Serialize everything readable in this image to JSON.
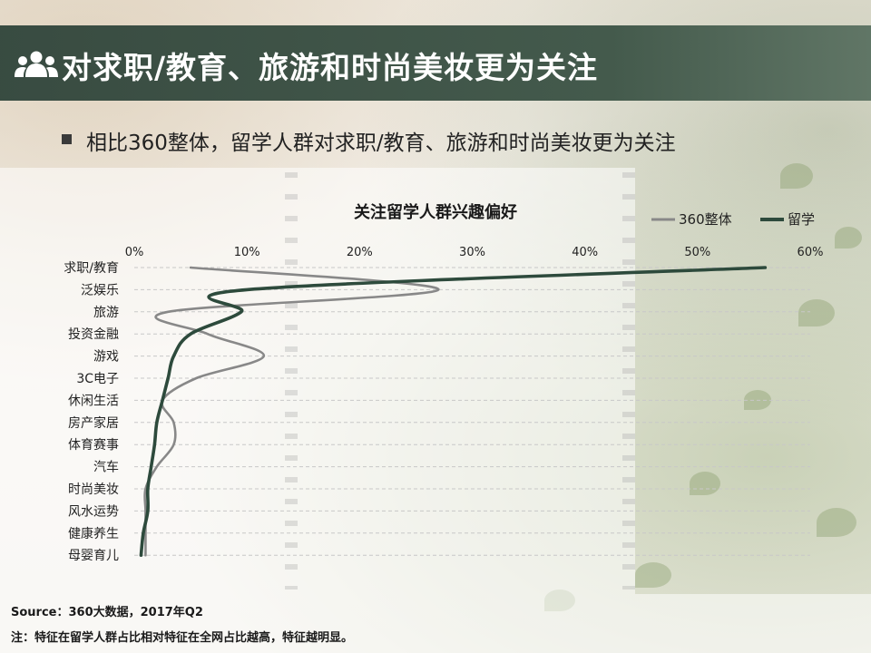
{
  "header": {
    "title": "对求职/教育、旅游和时尚美妆更为关注",
    "icon": "people-icon"
  },
  "subtitle": "相比360整体，留学人群对求职/教育、旅游和时尚美妆更为关注",
  "chart_data": {
    "type": "line",
    "orientation": "horizontal",
    "title": "关注留学人群兴趣偏好",
    "categories": [
      "求职/教育",
      "泛娱乐",
      "旅游",
      "投资金融",
      "游戏",
      "3C电子",
      "休闲生活",
      "房产家居",
      "体育赛事",
      "汽车",
      "时尚美妆",
      "风水运势",
      "健康养生",
      "母婴育儿"
    ],
    "xlim": [
      0,
      60
    ],
    "xticks": [
      "0%",
      "10%",
      "20%",
      "30%",
      "40%",
      "50%",
      "60%"
    ],
    "tick_values": [
      0,
      10,
      20,
      30,
      40,
      50,
      60
    ],
    "grid": true,
    "legend": "top-right",
    "series": [
      {
        "name": "360整体",
        "color": "#888888",
        "values": [
          5.0,
          27.0,
          3.0,
          6.5,
          11.5,
          5.5,
          2.5,
          3.5,
          3.5,
          2.0,
          1.0,
          1.0,
          1.0,
          1.0
        ]
      },
      {
        "name": "留学",
        "color": "#2d4a3c",
        "values": [
          56.0,
          10.0,
          9.5,
          5.0,
          3.5,
          3.0,
          2.5,
          2.0,
          1.8,
          1.5,
          1.2,
          1.2,
          0.8,
          0.6
        ]
      }
    ]
  },
  "footer": {
    "source": "Source：360大数据，2017年Q2",
    "note": "注：特征在留学人群占比相对特征在全网占比越高，特征越明显。"
  }
}
